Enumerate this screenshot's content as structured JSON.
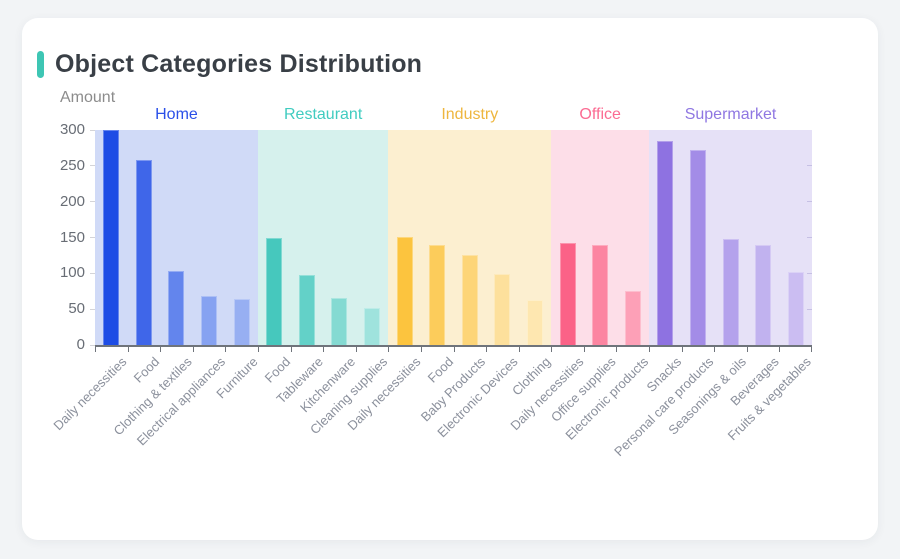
{
  "card": {
    "title": "Object Categories Distribution",
    "accent_color": "#3ec6b4"
  },
  "chart_data": {
    "type": "bar",
    "title": "Object Categories Distribution",
    "ylabel": "Amount",
    "xlabel": "",
    "ylim": [
      0,
      300
    ],
    "y_ticks": [
      0,
      50,
      100,
      150,
      200,
      250,
      300
    ],
    "grid": false,
    "legend_position": "none",
    "x_label_rotation": 45,
    "groups": [
      {
        "name": "Home",
        "label_color": "#2b50e8",
        "band_color": "#d0daf7",
        "categories": [
          "Daily necessities",
          "Food",
          "Clothing & textiles",
          "Electrical appliances",
          "Furniture"
        ],
        "values": [
          300,
          258,
          103,
          69,
          64
        ],
        "bar_colors": [
          "#1d4ce5",
          "#3f66e9",
          "#6385ed",
          "#86a2f1",
          "#97aff2"
        ]
      },
      {
        "name": "Restaurant",
        "label_color": "#41ccc0",
        "band_color": "#d6f1ed",
        "categories": [
          "Food",
          "Tableware",
          "Kitchenware",
          "Cleaning supplies"
        ],
        "values": [
          149,
          97,
          65,
          51
        ],
        "bar_colors": [
          "#46c8bd",
          "#63d1c8",
          "#84dad2",
          "#9fe3dd"
        ]
      },
      {
        "name": "Industry",
        "label_color": "#eeb63e",
        "band_color": "#fcefd0",
        "categories": [
          "Daily necessities",
          "Food",
          "Baby Products",
          "Electronic Devices",
          "Clothing"
        ],
        "values": [
          151,
          139,
          126,
          99,
          63
        ],
        "bar_colors": [
          "#fcc43e",
          "#fccc5b",
          "#fdd578",
          "#fde09c",
          "#fee7b0"
        ]
      },
      {
        "name": "Office",
        "label_color": "#fb6b92",
        "band_color": "#fddee8",
        "categories": [
          "Daily necessities",
          "Office supplies",
          "Electronic products"
        ],
        "values": [
          142,
          139,
          75
        ],
        "bar_colors": [
          "#fb6287",
          "#fc85a1",
          "#fda0b7"
        ]
      },
      {
        "name": "Supermarket",
        "label_color": "#8f77e2",
        "band_color": "#e6e1f7",
        "categories": [
          "Snacks",
          "Personal care products",
          "Seasonings & oils",
          "Beverages",
          "Fruits & vegetables"
        ],
        "values": [
          285,
          272,
          148,
          140,
          102
        ],
        "bar_colors": [
          "#8e72e1",
          "#a38ce7",
          "#b4a2ec",
          "#c1b2ef",
          "#cbbdf2"
        ]
      }
    ]
  }
}
